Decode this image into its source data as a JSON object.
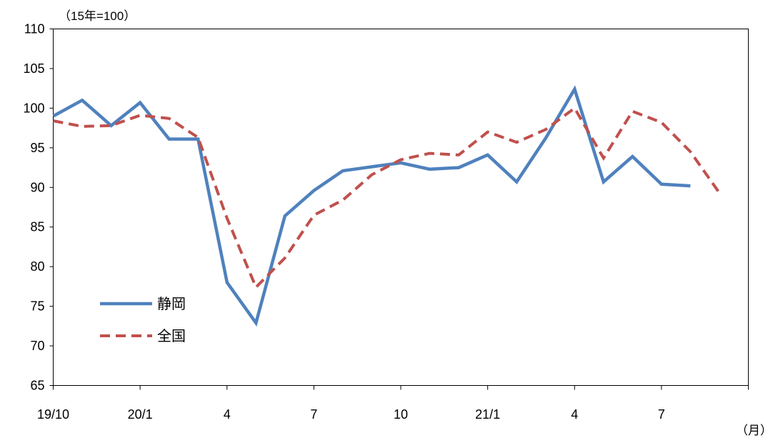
{
  "chart_data": {
    "type": "line",
    "title": "",
    "y_unit_label": "（15年=100）",
    "x_unit_label": "（月）",
    "ylim": [
      65,
      110
    ],
    "yticks": [
      65,
      70,
      75,
      80,
      85,
      90,
      95,
      100,
      105,
      110
    ],
    "xtick_labels": [
      "19/10",
      "20/1",
      "4",
      "7",
      "10",
      "21/1",
      "4",
      "7"
    ],
    "x": [
      "19/10",
      "19/11",
      "19/12",
      "20/1",
      "20/2",
      "20/3",
      "20/4",
      "20/5",
      "20/6",
      "20/7",
      "20/8",
      "20/9",
      "20/10",
      "20/11",
      "20/12",
      "21/1",
      "21/2",
      "21/3",
      "21/4",
      "21/5",
      "21/6",
      "21/7",
      "21/8",
      "21/9"
    ],
    "grid": false,
    "legend_position": "bottom-left",
    "series": [
      {
        "name": "静岡",
        "color": "#4F81BD",
        "style": "solid",
        "values": [
          99.0,
          101.0,
          97.8,
          100.7,
          96.1,
          96.1,
          78.0,
          72.9,
          86.4,
          89.6,
          92.1,
          92.6,
          93.1,
          92.3,
          92.5,
          94.1,
          90.7,
          96.2,
          102.4,
          90.7,
          93.9,
          90.4,
          90.2,
          null
        ]
      },
      {
        "name": "全国",
        "color": "#C0504D",
        "style": "dashed",
        "values": [
          98.4,
          97.7,
          97.8,
          99.1,
          98.7,
          96.3,
          86.1,
          77.4,
          81.1,
          86.5,
          88.4,
          91.6,
          93.5,
          94.3,
          94.1,
          97.0,
          95.7,
          97.3,
          100.0,
          93.7,
          99.6,
          98.2,
          94.5,
          89.3
        ]
      }
    ]
  }
}
